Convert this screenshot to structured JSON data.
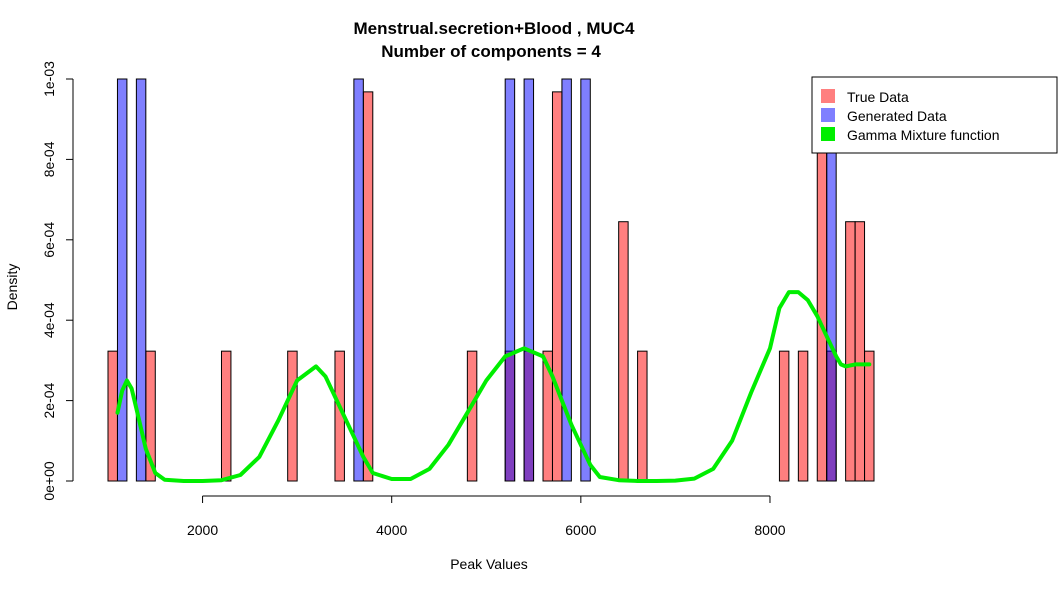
{
  "chart_data": {
    "type": "histogram",
    "title": "Menstrual.secretion+Blood , MUC4",
    "subtitle": "Number of components =  4",
    "xlabel": "Peak Values",
    "ylabel": "Density",
    "xlim": [
      1000,
      9100
    ],
    "ylim": [
      0,
      0.001
    ],
    "x_ticks": [
      2000,
      4000,
      6000,
      8000
    ],
    "x_tick_labels": [
      "2000",
      "4000",
      "6000",
      "8000"
    ],
    "y_ticks": [
      0,
      0.0002,
      0.0004,
      0.0006,
      0.0008,
      0.001
    ],
    "y_tick_labels": [
      "0e+00",
      "2e-04",
      "4e-04",
      "6e-04",
      "8e-04",
      "1e-03"
    ],
    "bin_width": 100,
    "legend_position": "top-right",
    "series": [
      {
        "name": "True Data",
        "color": "#ff5555",
        "bins": [
          {
            "x": 1000,
            "v": 0.000323
          },
          {
            "x": 1400,
            "v": 0.000323
          },
          {
            "x": 2200,
            "v": 0.000323
          },
          {
            "x": 2900,
            "v": 0.000323
          },
          {
            "x": 3400,
            "v": 0.000323
          },
          {
            "x": 3700,
            "v": 0.000968
          },
          {
            "x": 4800,
            "v": 0.000323
          },
          {
            "x": 5200,
            "v": 0.000323
          },
          {
            "x": 5400,
            "v": 0.000323
          },
          {
            "x": 5600,
            "v": 0.000323
          },
          {
            "x": 5700,
            "v": 0.000968
          },
          {
            "x": 6400,
            "v": 0.000645
          },
          {
            "x": 6600,
            "v": 0.000323
          },
          {
            "x": 8100,
            "v": 0.000323
          },
          {
            "x": 8300,
            "v": 0.000323
          },
          {
            "x": 8500,
            "v": 0.000968
          },
          {
            "x": 8600,
            "v": 0.000323
          },
          {
            "x": 8800,
            "v": 0.000645
          },
          {
            "x": 8900,
            "v": 0.000645
          },
          {
            "x": 9000,
            "v": 0.000323
          }
        ]
      },
      {
        "name": "Generated Data",
        "color": "#4444ff",
        "bins": [
          {
            "x": 1100,
            "v": 0.001
          },
          {
            "x": 1300,
            "v": 0.001
          },
          {
            "x": 3600,
            "v": 0.001
          },
          {
            "x": 5200,
            "v": 0.001
          },
          {
            "x": 5400,
            "v": 0.001
          },
          {
            "x": 5800,
            "v": 0.001
          },
          {
            "x": 6000,
            "v": 0.001
          },
          {
            "x": 8600,
            "v": 0.001
          }
        ]
      }
    ],
    "curve": {
      "name": "Gamma Mixture function",
      "color": "#00ee00",
      "x": [
        1100,
        1150,
        1200,
        1250,
        1300,
        1400,
        1500,
        1600,
        1800,
        2000,
        2200,
        2400,
        2600,
        2800,
        3000,
        3200,
        3300,
        3400,
        3500,
        3600,
        3700,
        3800,
        4000,
        4200,
        4400,
        4600,
        4800,
        5000,
        5200,
        5400,
        5600,
        5700,
        5800,
        5900,
        6000,
        6100,
        6200,
        6400,
        6600,
        6800,
        7000,
        7200,
        7400,
        7600,
        7800,
        8000,
        8100,
        8200,
        8300,
        8400,
        8500,
        8600,
        8700,
        8750,
        8800,
        8900,
        9000,
        9050
      ],
      "y": [
        0.00017,
        0.000225,
        0.00025,
        0.00023,
        0.00018,
        8e-05,
        2e-05,
        3e-06,
        0.0,
        0.0,
        2e-06,
        1.5e-05,
        6e-05,
        0.00015,
        0.00025,
        0.000285,
        0.00026,
        0.00021,
        0.00016,
        0.00011,
        6e-05,
        2e-05,
        5e-06,
        5e-06,
        3e-05,
        9e-05,
        0.00017,
        0.00025,
        0.00031,
        0.00033,
        0.00031,
        0.00026,
        0.0002,
        0.00014,
        9e-05,
        4e-05,
        1e-05,
        2e-06,
        0.0,
        0.0,
        1e-06,
        6e-06,
        3e-05,
        0.0001,
        0.00022,
        0.00033,
        0.00043,
        0.00047,
        0.00047,
        0.00045,
        0.00041,
        0.00036,
        0.00031,
        0.00029,
        0.000285,
        0.00029,
        0.00029,
        0.00029
      ]
    }
  }
}
